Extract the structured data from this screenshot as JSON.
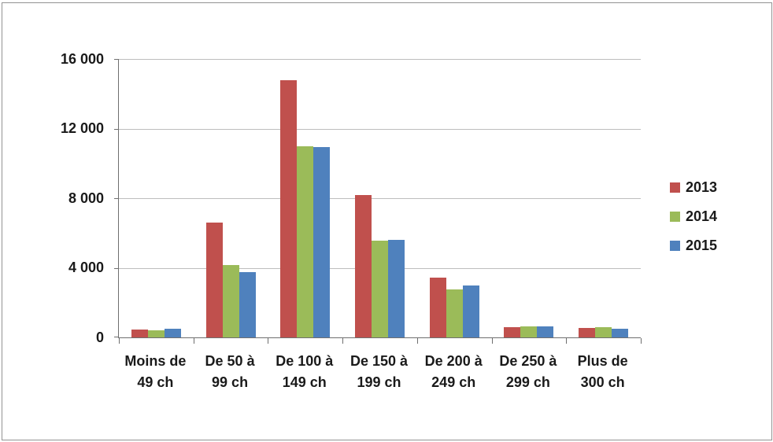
{
  "chart_data": {
    "type": "bar",
    "title": "",
    "xlabel": "",
    "ylabel": "",
    "categories": [
      [
        "Moins de",
        "49 ch"
      ],
      [
        "De 50 à",
        "99 ch"
      ],
      [
        "De 100 à",
        "149 ch"
      ],
      [
        "De 150 à",
        "199 ch"
      ],
      [
        "De 200 à",
        "249 ch"
      ],
      [
        "De 250 à",
        "299 ch"
      ],
      [
        "Plus de",
        "300 ch"
      ]
    ],
    "series": [
      {
        "name": "2013",
        "color": "#C0504D",
        "values": [
          450,
          6600,
          14800,
          8200,
          3450,
          600,
          520
        ]
      },
      {
        "name": "2014",
        "color": "#9BBB59",
        "values": [
          400,
          4150,
          11000,
          5550,
          2750,
          650,
          600
        ]
      },
      {
        "name": "2015",
        "color": "#4F81BD",
        "values": [
          500,
          3750,
          10950,
          5600,
          3000,
          650,
          480
        ]
      }
    ],
    "ylim": [
      0,
      16000
    ],
    "ytick_step": 4000,
    "ytick_labels": [
      "16 000",
      "12 000",
      "8 000",
      "4 000",
      "0"
    ],
    "grid": true,
    "legend_position": "right",
    "colors": {
      "axis": "#6f6f6f",
      "gridline": "#bdbdbd",
      "text": "#1a1a1a",
      "background": "#ffffff",
      "frame_border": "#929292"
    }
  }
}
